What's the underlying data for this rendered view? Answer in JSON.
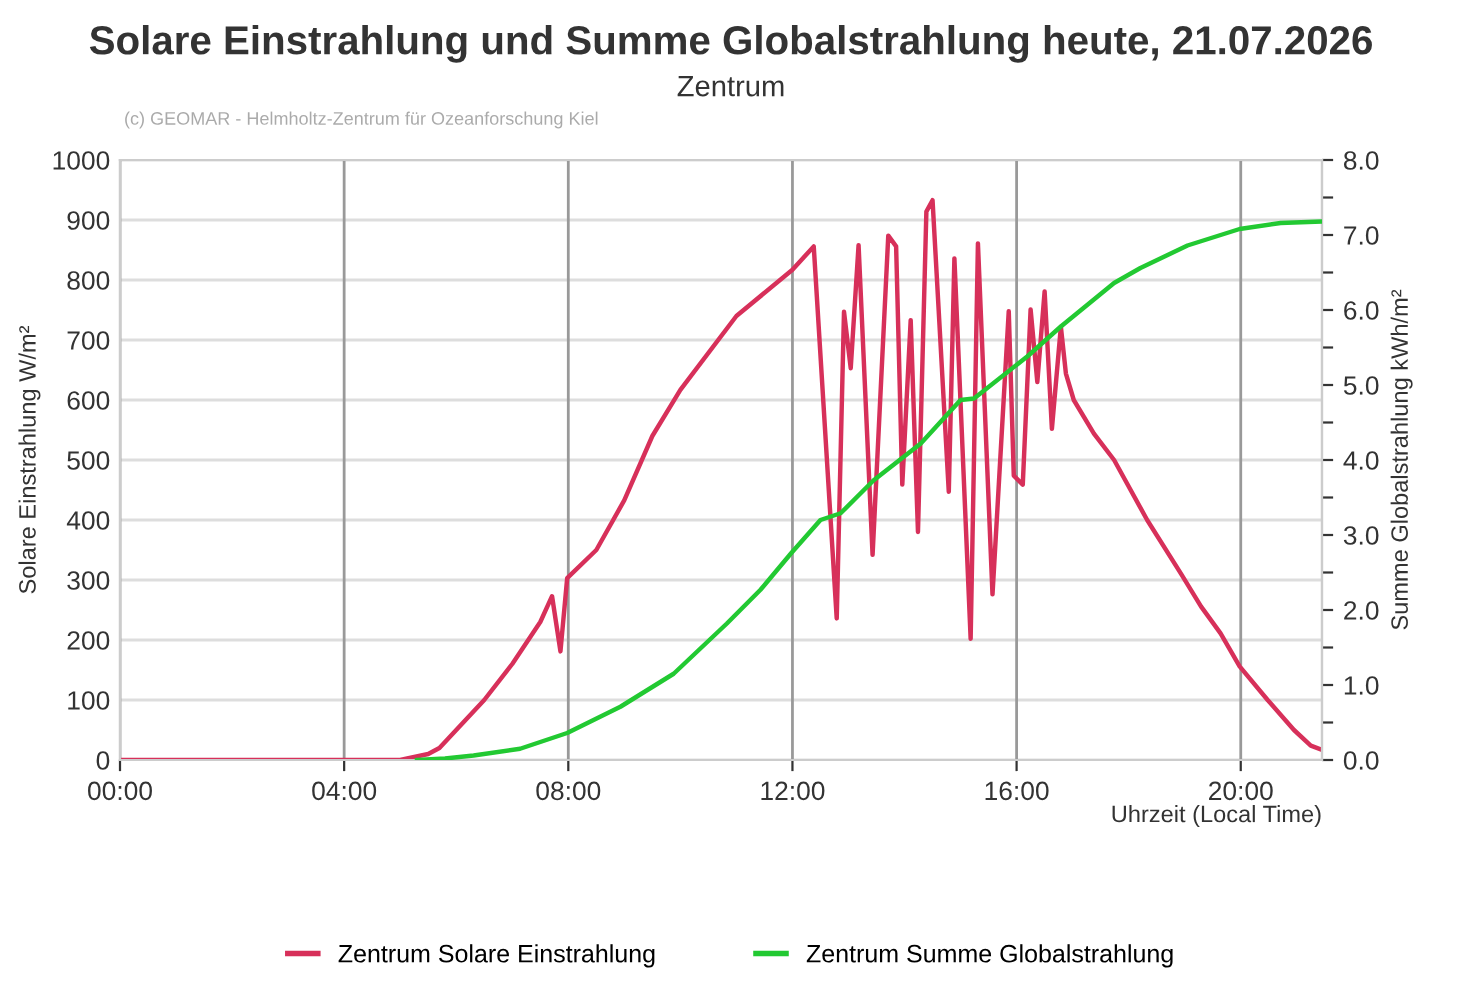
{
  "chart_data": {
    "type": "line",
    "title": "Solare Einstrahlung und Summe Globalstrahlung heute, 21.07.2026",
    "subtitle": "Zentrum",
    "annotations": [
      "(c) GEOMAR - Helmholtz-Zentrum für Ozeanforschung Kiel"
    ],
    "xlabel": "Uhrzeit (Local Time)",
    "ylabel": "Solare Einstrahlung W/m²",
    "y2label": "Summe Globalstrahlung kWh/m²",
    "series": [
      {
        "name": "Zentrum Solare Einstrahlung",
        "color": "#d7305a",
        "x": [
          0,
          5.0,
          5.5,
          5.7,
          6.0,
          6.5,
          7.0,
          7.5,
          7.71,
          7.86,
          7.98,
          8.5,
          9.0,
          9.5,
          10.0,
          11.0,
          12.0,
          12.38,
          12.79,
          12.92,
          13.04,
          13.18,
          13.43,
          13.71,
          13.85,
          13.96,
          14.11,
          14.24,
          14.39,
          14.5,
          14.79,
          14.89,
          15.18,
          15.31,
          15.57,
          15.86,
          15.95,
          16.11,
          16.25,
          16.37,
          16.5,
          16.63,
          16.79,
          16.88,
          17.02,
          17.38,
          17.74,
          18.33,
          18.93,
          19.29,
          19.64,
          19.98,
          20.48,
          20.95,
          21.25,
          21.45
        ],
        "values": [
          0,
          0,
          10,
          20,
          50,
          100,
          160,
          230,
          273,
          181,
          303,
          350,
          433,
          540,
          617,
          740,
          817,
          856,
          236,
          747,
          653,
          858,
          342,
          874,
          856,
          459,
          733,
          380,
          914,
          933,
          447,
          836,
          202,
          861,
          276,
          748,
          474,
          459,
          751,
          630,
          781,
          552,
          722,
          644,
          600,
          544,
          500,
          400,
          311,
          256,
          211,
          156,
          100,
          50,
          24,
          17
        ]
      },
      {
        "name": "Zentrum Summe Globalstrahlung",
        "color": "#22c932",
        "axis": "y2",
        "x": [
          5.3,
          5.8,
          6.31,
          7.14,
          7.98,
          8.93,
          9.88,
          10.83,
          11.43,
          11.98,
          12.5,
          12.86,
          13.45,
          14.29,
          15.0,
          15.24,
          16.19,
          16.79,
          17.74,
          18.21,
          19.05,
          19.98,
          20.71,
          21.45
        ],
        "values": [
          0,
          0.02,
          0.06,
          0.15,
          0.36,
          0.71,
          1.15,
          1.82,
          2.27,
          2.76,
          3.2,
          3.29,
          3.73,
          4.22,
          4.8,
          4.82,
          5.38,
          5.78,
          6.36,
          6.56,
          6.86,
          7.08,
          7.16,
          7.18
        ]
      }
    ],
    "xlim": [
      0,
      21.45
    ],
    "xticks": [
      {
        "value": 0,
        "label": "00:00"
      },
      {
        "value": 4,
        "label": "04:00"
      },
      {
        "value": 8,
        "label": "08:00"
      },
      {
        "value": 12,
        "label": "12:00"
      },
      {
        "value": 16,
        "label": "16:00"
      },
      {
        "value": 20,
        "label": "20:00"
      }
    ],
    "ylim": [
      0,
      1000
    ],
    "yticks": [
      0,
      100,
      200,
      300,
      400,
      500,
      600,
      700,
      800,
      900,
      1000
    ],
    "y2lim": [
      0,
      8
    ],
    "y2ticks": [
      {
        "value": 0,
        "label": "0.0"
      },
      {
        "value": 0.5,
        "label": null
      },
      {
        "value": 1,
        "label": "1.0"
      },
      {
        "value": 1.5,
        "label": null
      },
      {
        "value": 2,
        "label": "2.0"
      },
      {
        "value": 2.5,
        "label": null
      },
      {
        "value": 3,
        "label": "3.0"
      },
      {
        "value": 3.5,
        "label": null
      },
      {
        "value": 4,
        "label": "4.0"
      },
      {
        "value": 4.5,
        "label": null
      },
      {
        "value": 5,
        "label": "5.0"
      },
      {
        "value": 5.5,
        "label": null
      },
      {
        "value": 6,
        "label": "6.0"
      },
      {
        "value": 6.5,
        "label": null
      },
      {
        "value": 7,
        "label": "7.0"
      },
      {
        "value": 7.5,
        "label": null
      },
      {
        "value": 8,
        "label": "8.0"
      }
    ],
    "grid": true,
    "legend": "bottom",
    "marker": "none",
    "line_style": "solid"
  }
}
